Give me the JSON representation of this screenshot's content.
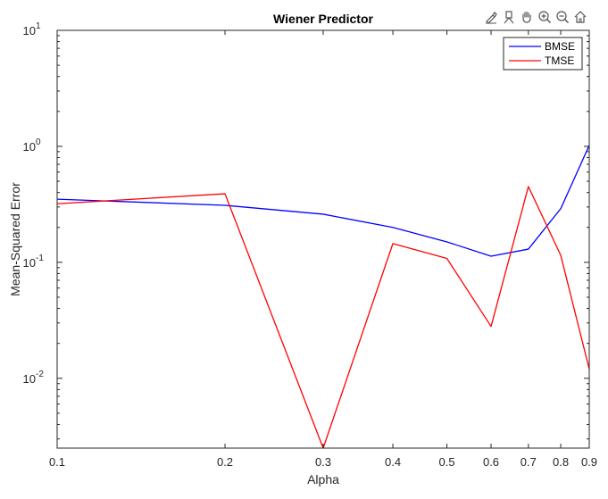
{
  "toolbar": {
    "icons": [
      "brush-icon",
      "data-tips-icon",
      "pan-hand-icon",
      "zoom-in-icon",
      "zoom-out-icon",
      "home-icon"
    ]
  },
  "chart_data": {
    "type": "line",
    "title": "Wiener Predictor",
    "xlabel": "Alpha",
    "ylabel": "Mean-Squared Error",
    "xscale": "log",
    "yscale": "log",
    "xlim": [
      0.1,
      0.9
    ],
    "ylim": [
      0.0025,
      10
    ],
    "x_ticks": [
      0.1,
      0.2,
      0.3,
      0.4,
      0.5,
      0.6,
      0.7,
      0.8,
      0.9
    ],
    "x_tick_labels": [
      "0.1",
      "0.2",
      "0.3",
      "0.4",
      "0.5",
      "0.6",
      "0.7",
      "0.8",
      "0.9"
    ],
    "y_ticks": [
      0.01,
      0.1,
      1,
      10
    ],
    "y_tick_labels": [
      {
        "base": "10",
        "exp": "-2"
      },
      {
        "base": "10",
        "exp": "-1"
      },
      {
        "base": "10",
        "exp": "0"
      },
      {
        "base": "10",
        "exp": "1"
      }
    ],
    "grid": false,
    "legend_position": "top-right",
    "x": [
      0.1,
      0.2,
      0.3,
      0.4,
      0.5,
      0.6,
      0.7,
      0.8,
      0.9
    ],
    "series": [
      {
        "name": "BMSE",
        "color": "#0000ff",
        "values": [
          0.35,
          0.31,
          0.26,
          0.2,
          0.15,
          0.113,
          0.13,
          0.29,
          1.02
        ]
      },
      {
        "name": "TMSE",
        "color": "#ff0000",
        "values": [
          0.32,
          0.39,
          0.0025,
          0.145,
          0.108,
          0.028,
          0.45,
          0.115,
          0.012
        ]
      }
    ]
  }
}
